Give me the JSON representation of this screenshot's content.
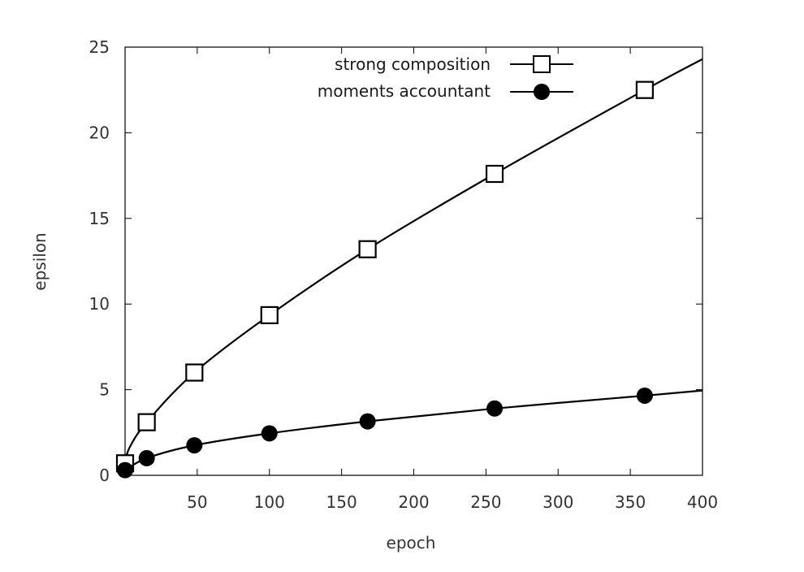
{
  "chart_data": {
    "type": "line",
    "title": "",
    "xlabel": "epoch",
    "ylabel": "epsilon",
    "xlim": [
      0,
      400
    ],
    "ylim": [
      0,
      25
    ],
    "xticks": [
      50,
      100,
      150,
      200,
      250,
      300,
      350,
      400
    ],
    "yticks": [
      0,
      5,
      10,
      15,
      20,
      25
    ],
    "grid": false,
    "legend_position": "top-right",
    "series": [
      {
        "name": "strong composition",
        "marker": "open-square",
        "color": "#000000",
        "curve": {
          "x": [
            0,
            3,
            15,
            48,
            100,
            168,
            256,
            360,
            400
          ],
          "y": [
            0.7,
            1.6,
            3.1,
            6.0,
            9.35,
            13.2,
            17.6,
            22.5,
            24.3
          ]
        },
        "markers": {
          "x": [
            0,
            15,
            48,
            100,
            168,
            256,
            360
          ],
          "y": [
            0.7,
            3.1,
            6.0,
            9.35,
            13.2,
            17.6,
            22.5
          ]
        }
      },
      {
        "name": "moments accountant",
        "marker": "filled-circle",
        "color": "#000000",
        "curve": {
          "x": [
            0,
            15,
            48,
            100,
            168,
            256,
            360,
            400
          ],
          "y": [
            0.3,
            1.0,
            1.75,
            2.45,
            3.15,
            3.9,
            4.65,
            4.95
          ]
        },
        "markers": {
          "x": [
            0,
            15,
            48,
            100,
            168,
            256,
            360
          ],
          "y": [
            0.3,
            1.0,
            1.75,
            2.45,
            3.15,
            3.9,
            4.65
          ]
        }
      }
    ]
  }
}
